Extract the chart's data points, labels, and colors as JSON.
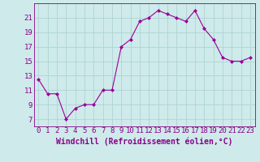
{
  "hours": [
    0,
    1,
    2,
    3,
    4,
    5,
    6,
    7,
    8,
    9,
    10,
    11,
    12,
    13,
    14,
    15,
    16,
    17,
    18,
    19,
    20,
    21,
    22,
    23
  ],
  "values": [
    12.5,
    10.5,
    10.5,
    7.0,
    8.5,
    9.0,
    9.0,
    11.0,
    11.0,
    17.0,
    18.0,
    20.5,
    21.0,
    22.0,
    21.5,
    21.0,
    20.5,
    22.0,
    19.5,
    18.0,
    15.5,
    15.0,
    15.0,
    15.5
  ],
  "line_color": "#990099",
  "marker": "D",
  "marker_size": 2,
  "bg_color": "#ceeaea",
  "grid_color": "#aed4d4",
  "xlabel": "Windchill (Refroidissement éolien,°C)",
  "ylim": [
    6,
    23
  ],
  "xlim": [
    -0.5,
    23.5
  ],
  "yticks": [
    7,
    9,
    11,
    13,
    15,
    17,
    19,
    21
  ],
  "xticks": [
    0,
    1,
    2,
    3,
    4,
    5,
    6,
    7,
    8,
    9,
    10,
    11,
    12,
    13,
    14,
    15,
    16,
    17,
    18,
    19,
    20,
    21,
    22,
    23
  ],
  "xtick_labels": [
    "0",
    "1",
    "2",
    "3",
    "4",
    "5",
    "6",
    "7",
    "8",
    "9",
    "10",
    "11",
    "12",
    "13",
    "14",
    "15",
    "16",
    "17",
    "18",
    "19",
    "20",
    "21",
    "22",
    "23"
  ],
  "xlabel_fontsize": 7,
  "tick_fontsize": 6.5,
  "axis_text_color": "#880088"
}
